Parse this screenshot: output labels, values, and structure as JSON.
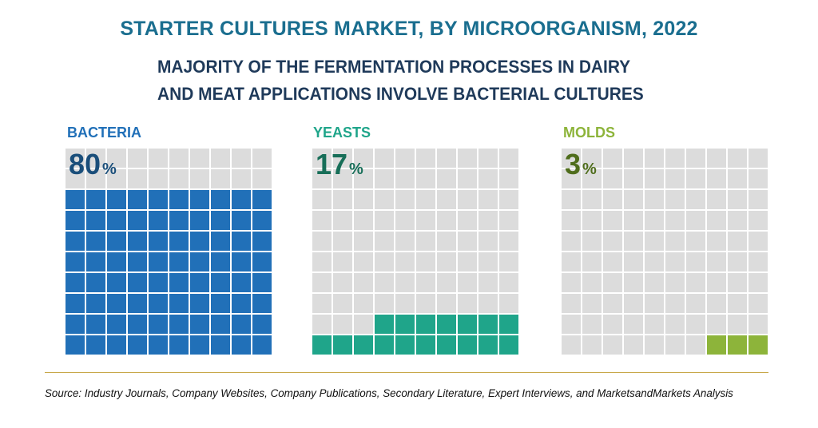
{
  "title": "STARTER CULTURES MARKET, BY MICROORGANISM, 2022",
  "subtitle": "MAJORITY OF THE FERMENTATION PROCESSES IN DAIRY AND MEAT APPLICATIONS INVOLVE BACTERIAL CULTURES",
  "source": "Source: Industry Journals, Company Websites, Company Publications, Secondary Literature, Expert Interviews, and MarketsandMarkets Analysis",
  "colors": {
    "empty": "#dcdcdc",
    "title": "#1a6e8f",
    "subtitle": "#1f3a5a",
    "divider": "#c8a84a"
  },
  "chart_data": {
    "type": "waffle",
    "grid": {
      "rows": 10,
      "cols": 10
    },
    "series": [
      {
        "name": "BACTERIA",
        "value": 80,
        "value_text": "80",
        "unit": "%",
        "color": "#2170b8",
        "value_color": "#1a4e7a"
      },
      {
        "name": "YEASTS",
        "value": 17,
        "value_text": "17",
        "unit": "%",
        "color": "#1fa58a",
        "value_color": "#176e58"
      },
      {
        "name": "MOLDS",
        "value": 3,
        "value_text": "3",
        "unit": "%",
        "color": "#8db43a",
        "value_color": "#4f6d1c"
      }
    ]
  }
}
